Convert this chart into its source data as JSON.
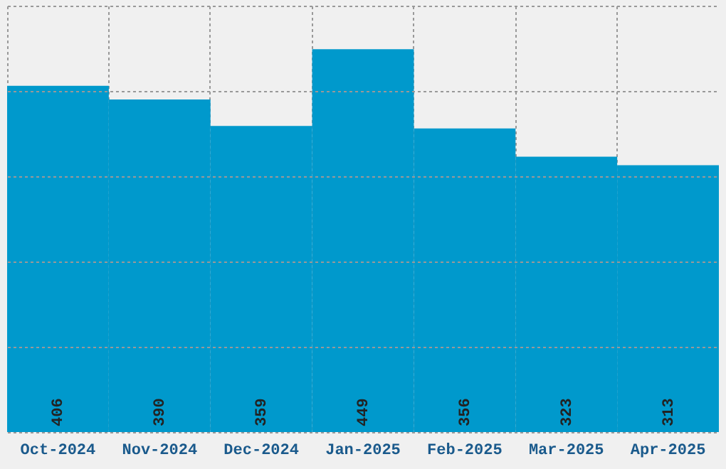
{
  "chart_data": {
    "type": "bar",
    "categories": [
      "Oct-2024",
      "Nov-2024",
      "Dec-2024",
      "Jan-2025",
      "Feb-2025",
      "Mar-2025",
      "Apr-2025"
    ],
    "values": [
      406,
      390,
      359,
      449,
      356,
      323,
      313
    ],
    "color": "#0099cc",
    "data_labels": true,
    "grid": true,
    "ylim": [
      0,
      500
    ],
    "tick_labels": "x"
  }
}
